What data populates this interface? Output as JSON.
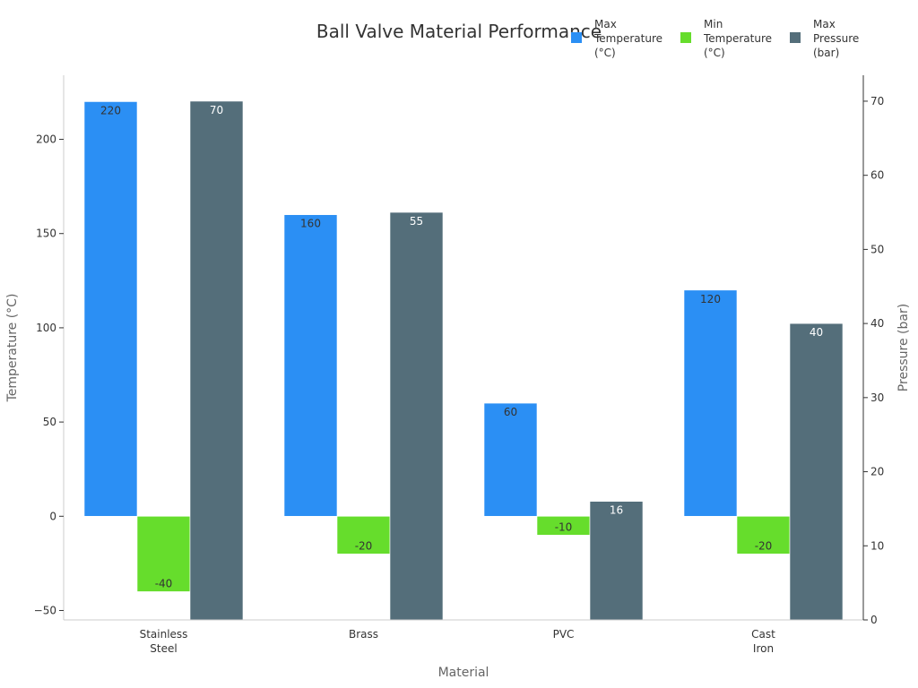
{
  "chart_data": {
    "type": "bar",
    "title": "Ball Valve Material Performance",
    "xlabel": "Material",
    "ylabel_left": "Temperature (°C)",
    "ylabel_right": "Pressure (bar)",
    "categories": [
      [
        "Stainless",
        "Steel"
      ],
      [
        "Brass"
      ],
      [
        "PVC"
      ],
      [
        "Cast",
        "Iron"
      ]
    ],
    "series": [
      {
        "name": [
          "Max",
          "Temperature",
          "(°C)"
        ],
        "axis": "left",
        "color": "#2b8ff4",
        "label_color": "#333333",
        "values": [
          220,
          160,
          60,
          120
        ]
      },
      {
        "name": [
          "Min",
          "Temperature",
          "(°C)"
        ],
        "axis": "left",
        "color": "#66dd2c",
        "label_color": "#333333",
        "values": [
          -40,
          -20,
          -10,
          -20
        ]
      },
      {
        "name": [
          "Max",
          "Pressure",
          "(bar)"
        ],
        "axis": "right",
        "color": "#546e7a",
        "label_color": "#ffffff",
        "values": [
          70,
          55,
          16,
          40
        ]
      }
    ],
    "left_axis": {
      "ticks": [
        -50,
        0,
        50,
        100,
        150,
        200
      ],
      "range": [
        -55,
        234
      ]
    },
    "right_axis": {
      "ticks": [
        0,
        10,
        20,
        30,
        40,
        50,
        60,
        70
      ],
      "range": [
        0,
        73.5
      ]
    },
    "legend_position": "top-right",
    "grid": false
  }
}
